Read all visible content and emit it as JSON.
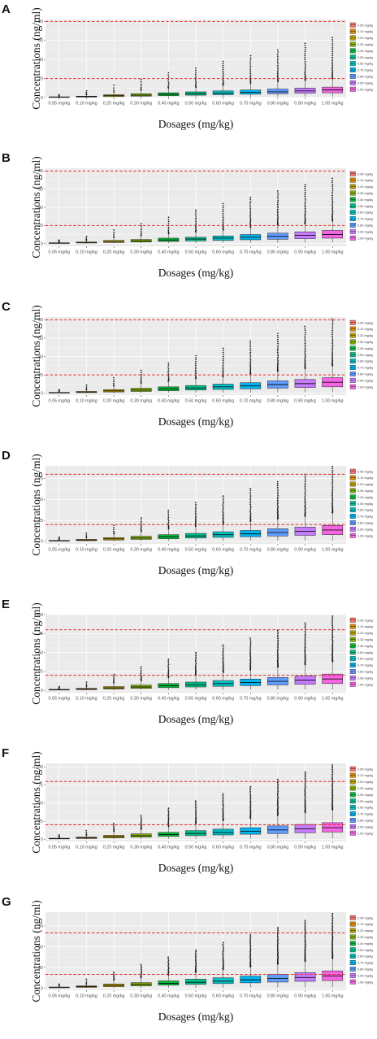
{
  "chart_data": [
    {
      "panel": "A",
      "type": "box",
      "ylim": [
        0,
        82
      ],
      "yticks": [
        0,
        20,
        40,
        60,
        80
      ],
      "xlabel": "Dosages (mg/kg)",
      "ylabel": "Concentrations (ng/ml)",
      "reference_lines": [
        20,
        80
      ],
      "legend_position": "right",
      "categories": [
        "0.05 mg/kg",
        "0.10 mg/kg",
        "0.20 mg/kg",
        "0.30 mg/kg",
        "0.40 mg/kg",
        "0.50 mg/kg",
        "0.60 mg/kg",
        "0.70 mg/kg",
        "0.80 mg/kg",
        "0.90 mg/kg",
        "1.00 mg/kg"
      ],
      "boxes": [
        {
          "q1": 0.3,
          "median": 0.5,
          "q3": 0.8,
          "whisker_low": 0.1,
          "whisker_high": 1.5,
          "max": 3
        },
        {
          "q1": 0.5,
          "median": 1,
          "q3": 1.5,
          "whisker_low": 0.1,
          "whisker_high": 3,
          "max": 7
        },
        {
          "q1": 1,
          "median": 2,
          "q3": 3,
          "whisker_low": 0.2,
          "whisker_high": 6,
          "max": 13
        },
        {
          "q1": 1.5,
          "median": 2.5,
          "q3": 4,
          "whisker_low": 0.3,
          "whisker_high": 8,
          "max": 19
        },
        {
          "q1": 2,
          "median": 3.5,
          "q3": 5,
          "whisker_low": 0.4,
          "whisker_high": 10,
          "max": 26
        },
        {
          "q1": 2.5,
          "median": 4,
          "q3": 6,
          "whisker_low": 0.5,
          "whisker_high": 11,
          "max": 31
        },
        {
          "q1": 3,
          "median": 4.5,
          "q3": 7,
          "whisker_low": 0.6,
          "whisker_high": 13,
          "max": 38
        },
        {
          "q1": 3.5,
          "median": 5.5,
          "q3": 8,
          "whisker_low": 0.7,
          "whisker_high": 15,
          "max": 44
        },
        {
          "q1": 4,
          "median": 6,
          "q3": 9,
          "whisker_low": 0.8,
          "whisker_high": 17,
          "max": 50
        },
        {
          "q1": 4.5,
          "median": 7,
          "q3": 10,
          "whisker_low": 0.9,
          "whisker_high": 18,
          "max": 57
        },
        {
          "q1": 5,
          "median": 8,
          "q3": 11,
          "whisker_low": 1,
          "whisker_high": 20,
          "max": 63
        }
      ]
    },
    {
      "panel": "B",
      "type": "box",
      "ylim": [
        -3,
        83
      ],
      "yticks": [
        0,
        20,
        40,
        60,
        80
      ],
      "xlabel": "Dosages (mg/kg)",
      "ylabel": "Concentrations (ng/ml)",
      "reference_lines": [
        20,
        80
      ],
      "legend_position": "right",
      "categories": [
        "0.05 mg/kg",
        "0.10 mg/kg",
        "0.20 mg/kg",
        "0.30 mg/kg",
        "0.40 mg/kg",
        "0.50 mg/kg",
        "0.60 mg/kg",
        "0.70 mg/kg",
        "0.80 mg/kg",
        "0.90 mg/kg",
        "1.00 mg/kg"
      ],
      "boxes": [
        {
          "q1": 0.3,
          "median": 0.6,
          "q3": 0.9,
          "whisker_low": 0.1,
          "whisker_high": 1.8,
          "max": 4
        },
        {
          "q1": 0.6,
          "median": 1.2,
          "q3": 1.8,
          "whisker_low": 0.1,
          "whisker_high": 3.5,
          "max": 8
        },
        {
          "q1": 1.2,
          "median": 2.2,
          "q3": 3.5,
          "whisker_low": 0.2,
          "whisker_high": 7,
          "max": 15
        },
        {
          "q1": 1.8,
          "median": 3,
          "q3": 4.5,
          "whisker_low": 0.3,
          "whisker_high": 9,
          "max": 22
        },
        {
          "q1": 2.4,
          "median": 4,
          "q3": 6,
          "whisker_low": 0.4,
          "whisker_high": 11,
          "max": 29
        },
        {
          "q1": 3,
          "median": 5,
          "q3": 7,
          "whisker_low": 0.5,
          "whisker_high": 13,
          "max": 37
        },
        {
          "q1": 3.6,
          "median": 6,
          "q3": 8.5,
          "whisker_low": 0.6,
          "whisker_high": 15,
          "max": 44
        },
        {
          "q1": 4.2,
          "median": 7,
          "q3": 10,
          "whisker_low": 0.7,
          "whisker_high": 18,
          "max": 51
        },
        {
          "q1": 4.8,
          "median": 8,
          "q3": 11.5,
          "whisker_low": 0.8,
          "whisker_high": 20,
          "max": 58
        },
        {
          "q1": 5.4,
          "median": 9,
          "q3": 13,
          "whisker_low": 0.9,
          "whisker_high": 22,
          "max": 65
        },
        {
          "q1": 6,
          "median": 10,
          "q3": 14.5,
          "whisker_low": 1,
          "whisker_high": 25,
          "max": 72
        }
      ]
    },
    {
      "panel": "C",
      "type": "box",
      "ylim": [
        -2,
        83
      ],
      "yticks": [
        0,
        20,
        40,
        60,
        80
      ],
      "xlabel": "Dosages (mg/kg)",
      "ylabel": "Concentrations (ng/ml)",
      "reference_lines": [
        20,
        80
      ],
      "legend_position": "right",
      "categories": [
        "0.05 mg/kg",
        "0.10 mg/kg",
        "0.20 mg/kg",
        "0.30 mg/kg",
        "0.40 mg/kg",
        "0.50 mg/kg",
        "0.60 mg/kg",
        "0.70 mg/kg",
        "0.80 mg/kg",
        "0.90 mg/kg",
        "1.00 mg/kg"
      ],
      "boxes": [
        {
          "q1": 0.3,
          "median": 0.7,
          "q3": 1,
          "whisker_low": 0.1,
          "whisker_high": 2,
          "max": 4
        },
        {
          "q1": 0.7,
          "median": 1.4,
          "q3": 2,
          "whisker_low": 0.1,
          "whisker_high": 4,
          "max": 9
        },
        {
          "q1": 1.4,
          "median": 2.6,
          "q3": 4,
          "whisker_low": 0.2,
          "whisker_high": 8,
          "max": 17
        },
        {
          "q1": 2,
          "median": 3.5,
          "q3": 5.5,
          "whisker_low": 0.3,
          "whisker_high": 11,
          "max": 25
        },
        {
          "q1": 2.8,
          "median": 4.8,
          "q3": 7,
          "whisker_low": 0.4,
          "whisker_high": 13,
          "max": 33
        },
        {
          "q1": 3.5,
          "median": 5.8,
          "q3": 8.5,
          "whisker_low": 0.5,
          "whisker_high": 16,
          "max": 41
        },
        {
          "q1": 4.2,
          "median": 7,
          "q3": 10,
          "whisker_low": 0.6,
          "whisker_high": 18,
          "max": 49
        },
        {
          "q1": 4.9,
          "median": 8,
          "q3": 11.5,
          "whisker_low": 0.7,
          "whisker_high": 21,
          "max": 57
        },
        {
          "q1": 5.6,
          "median": 9.5,
          "q3": 13.5,
          "whisker_low": 0.8,
          "whisker_high": 24,
          "max": 65
        },
        {
          "q1": 6.3,
          "median": 10.5,
          "q3": 15,
          "whisker_low": 0.9,
          "whisker_high": 27,
          "max": 73
        },
        {
          "q1": 7,
          "median": 12,
          "q3": 17,
          "whisker_low": 1,
          "whisker_high": 30,
          "max": 81
        }
      ]
    },
    {
      "panel": "D",
      "type": "box",
      "ylim": [
        -3,
        90
      ],
      "yticks": [
        0,
        25,
        50,
        75
      ],
      "xlabel": "Dosages (mg/kg)",
      "ylabel": "Concentrations (ng/ml)",
      "reference_lines": [
        20,
        80
      ],
      "legend_position": "right",
      "categories": [
        "0.05 mg/kg",
        "0.10 mg/kg",
        "0.20 mg/kg",
        "0.30 mg/kg",
        "0.40 mg/kg",
        "0.50 mg/kg",
        "0.60 mg/kg",
        "0.70 mg/kg",
        "0.80 mg/kg",
        "0.90 mg/kg",
        "1.00 mg/kg"
      ],
      "boxes": [
        {
          "q1": 0.4,
          "median": 0.8,
          "q3": 1.2,
          "whisker_low": 0.1,
          "whisker_high": 2.2,
          "max": 5
        },
        {
          "q1": 0.8,
          "median": 1.6,
          "q3": 2.4,
          "whisker_low": 0.1,
          "whisker_high": 4.5,
          "max": 10
        },
        {
          "q1": 1.6,
          "median": 3,
          "q3": 4.5,
          "whisker_low": 0.2,
          "whisker_high": 9,
          "max": 19
        },
        {
          "q1": 2.4,
          "median": 4,
          "q3": 6,
          "whisker_low": 0.3,
          "whisker_high": 12,
          "max": 28
        },
        {
          "q1": 3.2,
          "median": 5.5,
          "q3": 8,
          "whisker_low": 0.4,
          "whisker_high": 15,
          "max": 37
        },
        {
          "q1": 4,
          "median": 6.5,
          "q3": 9.5,
          "whisker_low": 0.5,
          "whisker_high": 18,
          "max": 46
        },
        {
          "q1": 4.8,
          "median": 8,
          "q3": 11.5,
          "whisker_low": 0.6,
          "whisker_high": 21,
          "max": 54
        },
        {
          "q1": 5.6,
          "median": 9,
          "q3": 13,
          "whisker_low": 0.7,
          "whisker_high": 24,
          "max": 63
        },
        {
          "q1": 6.4,
          "median": 10.5,
          "q3": 15,
          "whisker_low": 0.8,
          "whisker_high": 27,
          "max": 71
        },
        {
          "q1": 7.2,
          "median": 12,
          "q3": 17,
          "whisker_low": 0.9,
          "whisker_high": 30,
          "max": 80
        },
        {
          "q1": 8,
          "median": 13.5,
          "q3": 19,
          "whisker_low": 1,
          "whisker_high": 34,
          "max": 89
        }
      ]
    },
    {
      "panel": "E",
      "type": "box",
      "ylim": [
        -3,
        100
      ],
      "yticks": [
        0,
        25,
        50,
        75,
        100
      ],
      "xlabel": "Dosages (mg/kg)",
      "ylabel": "Concentrations (ng/ml)",
      "reference_lines": [
        20,
        80
      ],
      "legend_position": "right",
      "categories": [
        "0.05 mg/kg",
        "0.10 mg/kg",
        "0.20 mg/kg",
        "0.30 mg/kg",
        "0.40 mg/kg",
        "0.50 mg/kg",
        "0.60 mg/kg",
        "0.70 mg/kg",
        "0.80 mg/kg",
        "0.90 mg/kg",
        "1.00 mg/kg"
      ],
      "boxes": [
        {
          "q1": 0.4,
          "median": 0.9,
          "q3": 1.4,
          "whisker_low": 0.1,
          "whisker_high": 2.5,
          "max": 5
        },
        {
          "q1": 0.9,
          "median": 1.8,
          "q3": 2.7,
          "whisker_low": 0.1,
          "whisker_high": 5,
          "max": 11
        },
        {
          "q1": 1.8,
          "median": 3.3,
          "q3": 5,
          "whisker_low": 0.2,
          "whisker_high": 10,
          "max": 21
        },
        {
          "q1": 2.7,
          "median": 4.5,
          "q3": 7,
          "whisker_low": 0.3,
          "whisker_high": 13,
          "max": 31
        },
        {
          "q1": 3.6,
          "median": 6,
          "q3": 9,
          "whisker_low": 0.4,
          "whisker_high": 17,
          "max": 41
        },
        {
          "q1": 4.5,
          "median": 7.5,
          "q3": 11,
          "whisker_low": 0.5,
          "whisker_high": 20,
          "max": 50
        },
        {
          "q1": 5.4,
          "median": 9,
          "q3": 13,
          "whisker_low": 0.6,
          "whisker_high": 24,
          "max": 60
        },
        {
          "q1": 6.3,
          "median": 10.5,
          "q3": 15,
          "whisker_low": 0.7,
          "whisker_high": 27,
          "max": 69
        },
        {
          "q1": 7.2,
          "median": 12,
          "q3": 17,
          "whisker_low": 0.8,
          "whisker_high": 31,
          "max": 79
        },
        {
          "q1": 8.1,
          "median": 13.5,
          "q3": 19,
          "whisker_low": 0.9,
          "whisker_high": 34,
          "max": 89
        },
        {
          "q1": 9,
          "median": 15,
          "q3": 21.5,
          "whisker_low": 1,
          "whisker_high": 38,
          "max": 98
        }
      ]
    },
    {
      "panel": "F",
      "type": "box",
      "ylim": [
        -3,
        105
      ],
      "yticks": [
        0,
        25,
        50,
        75,
        100
      ],
      "xlabel": "Dosages (mg/kg)",
      "ylabel": "Concentrations (ng/ml)",
      "reference_lines": [
        20,
        80
      ],
      "legend_position": "right",
      "categories": [
        "0.05 mg/kg",
        "0.10 mg/kg",
        "0.20 mg/kg",
        "0.30 mg/kg",
        "0.40 mg/kg",
        "0.50 mg/kg",
        "0.60 mg/kg",
        "0.70 mg/kg",
        "0.80 mg/kg",
        "0.90 mg/kg",
        "1.00 mg/kg"
      ],
      "boxes": [
        {
          "q1": 0.5,
          "median": 1,
          "q3": 1.5,
          "whisker_low": 0.1,
          "whisker_high": 2.8,
          "max": 6
        },
        {
          "q1": 1,
          "median": 2,
          "q3": 3,
          "whisker_low": 0.1,
          "whisker_high": 5.5,
          "max": 12
        },
        {
          "q1": 2,
          "median": 3.6,
          "q3": 5.5,
          "whisker_low": 0.2,
          "whisker_high": 11,
          "max": 22
        },
        {
          "q1": 3,
          "median": 5,
          "q3": 7.5,
          "whisker_low": 0.3,
          "whisker_high": 14,
          "max": 33
        },
        {
          "q1": 4,
          "median": 6.5,
          "q3": 9.5,
          "whisker_low": 0.4,
          "whisker_high": 18,
          "max": 43
        },
        {
          "q1": 5,
          "median": 8,
          "q3": 12,
          "whisker_low": 0.5,
          "whisker_high": 22,
          "max": 53
        },
        {
          "q1": 6,
          "median": 9.5,
          "q3": 14,
          "whisker_low": 0.6,
          "whisker_high": 26,
          "max": 63
        },
        {
          "q1": 7,
          "median": 11,
          "q3": 16,
          "whisker_low": 0.7,
          "whisker_high": 29,
          "max": 73
        },
        {
          "q1": 8,
          "median": 13,
          "q3": 18.5,
          "whisker_low": 0.8,
          "whisker_high": 33,
          "max": 83
        },
        {
          "q1": 9,
          "median": 14.5,
          "q3": 20.5,
          "whisker_low": 0.9,
          "whisker_high": 37,
          "max": 93
        },
        {
          "q1": 10,
          "median": 16,
          "q3": 23,
          "whisker_low": 1,
          "whisker_high": 41,
          "max": 103
        }
      ]
    },
    {
      "panel": "G",
      "type": "box",
      "ylim": [
        -3,
        110
      ],
      "yticks": [
        0,
        30,
        60,
        90
      ],
      "xlabel": "Dosages (mg/kg)",
      "ylabel": "Concentrations (ng/ml)",
      "reference_lines": [
        20,
        80
      ],
      "legend_position": "right",
      "categories": [
        "0.05 mg/kg",
        "0.10 mg/kg",
        "0.20 mg/kg",
        "0.30 mg/kg",
        "0.40 mg/kg",
        "0.50 mg/kg",
        "0.60 mg/kg",
        "0.70 mg/kg",
        "0.80 mg/kg",
        "0.90 mg/kg",
        "1.00 mg/kg"
      ],
      "boxes": [
        {
          "q1": 0.5,
          "median": 1.1,
          "q3": 1.7,
          "whisker_low": 0.1,
          "whisker_high": 3,
          "max": 6
        },
        {
          "q1": 1.1,
          "median": 2.2,
          "q3": 3.3,
          "whisker_low": 0.1,
          "whisker_high": 6,
          "max": 13
        },
        {
          "q1": 2.2,
          "median": 4,
          "q3": 6,
          "whisker_low": 0.2,
          "whisker_high": 12,
          "max": 23
        },
        {
          "q1": 3.3,
          "median": 5.5,
          "q3": 8,
          "whisker_low": 0.3,
          "whisker_high": 15,
          "max": 34
        },
        {
          "q1": 4.4,
          "median": 7,
          "q3": 10.5,
          "whisker_low": 0.4,
          "whisker_high": 19,
          "max": 45
        },
        {
          "q1": 5.5,
          "median": 8.5,
          "q3": 13,
          "whisker_low": 0.5,
          "whisker_high": 23,
          "max": 55
        },
        {
          "q1": 6.6,
          "median": 10,
          "q3": 15,
          "whisker_low": 0.6,
          "whisker_high": 27,
          "max": 66
        },
        {
          "q1": 7.7,
          "median": 12,
          "q3": 17.5,
          "whisker_low": 0.7,
          "whisker_high": 31,
          "max": 77
        },
        {
          "q1": 8.8,
          "median": 14,
          "q3": 20,
          "whisker_low": 0.8,
          "whisker_high": 35,
          "max": 88
        },
        {
          "q1": 9.9,
          "median": 15.5,
          "q3": 22.5,
          "whisker_low": 0.9,
          "whisker_high": 39,
          "max": 98
        },
        {
          "q1": 11,
          "median": 17.5,
          "q3": 25,
          "whisker_low": 1,
          "whisker_high": 43,
          "max": 108
        }
      ]
    }
  ],
  "series_colors": [
    "#F8766D",
    "#DE8C00",
    "#B79F00",
    "#7CAE00",
    "#00BA38",
    "#00C08B",
    "#00BFC4",
    "#00B4F0",
    "#619CFF",
    "#C77CFF",
    "#F564E3"
  ],
  "reference_line_color": "#e32b2b",
  "panel_background": "#ebebeb",
  "gridline_color": "#ffffff"
}
